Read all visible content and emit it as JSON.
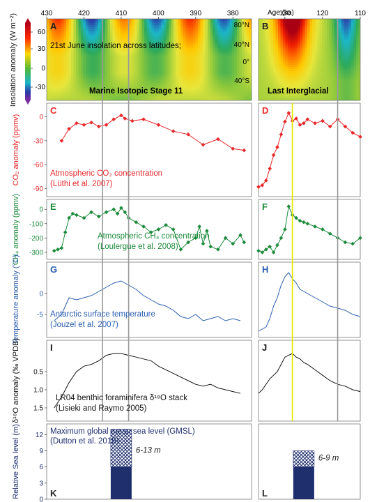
{
  "axis": {
    "age_label": "Age (ka)",
    "mis11_ticks": [
      "430",
      "420",
      "410",
      "400",
      "390",
      "380"
    ],
    "lig_ticks": [
      "130",
      "120",
      "110"
    ]
  },
  "colors": {
    "co2": "#e8282b",
    "ch4": "#1b8a3a",
    "temp": "#2a5eb0",
    "d18o": "#111111",
    "sea_level": "#1f2f6e",
    "marker_grey": "#9a9a9a",
    "marker_yellow": "#e8e800"
  },
  "chart_data": [
    {
      "id": "insolation",
      "type": "heatmap",
      "panels": [
        "A",
        "B"
      ],
      "ylabel": "Insolation anomaly (W m⁻²)",
      "colorbar_ticks": [
        "60",
        "30",
        "0",
        "-30"
      ],
      "lat_ticks": [
        "80°N",
        "40°N",
        "0°",
        "40°S"
      ],
      "annotation": "21st June insolation across latitudes;",
      "label_left": "Marine Isotopic Stage 11",
      "label_right": "Last Interglacial",
      "clim": [
        -45,
        75
      ]
    },
    {
      "id": "co2",
      "type": "line",
      "panels": [
        "C",
        "D"
      ],
      "ylabel": "CO₂ anomaly (ppmv)",
      "yticks": [
        "0",
        "-30",
        "-60",
        "-90"
      ],
      "ylim": [
        -95,
        12
      ],
      "annotation_line1": "Atmospheric CO₂ concentration",
      "annotation_line2": "(Lüthi et al. 2007)",
      "mis11": {
        "x": [
          426,
          424,
          422,
          420,
          418,
          416,
          414,
          412,
          410,
          409,
          407,
          404,
          400,
          396,
          392,
          388,
          384,
          380,
          377
        ],
        "y": [
          -30,
          -15,
          -8,
          -10,
          -7,
          -12,
          -10,
          -3,
          2,
          -2,
          -5,
          -3,
          -10,
          -18,
          -22,
          -35,
          -28,
          -40,
          -42
        ]
      },
      "lig": {
        "x": [
          137,
          136,
          135,
          134,
          133,
          132,
          131,
          130,
          129,
          128,
          127,
          126,
          125,
          124,
          122,
          120,
          118,
          116,
          114,
          112,
          110
        ],
        "y": [
          -88,
          -86,
          -80,
          -65,
          -48,
          -38,
          -22,
          -6,
          5,
          -5,
          -2,
          -10,
          -8,
          -3,
          -8,
          -5,
          -12,
          -3,
          -12,
          -20,
          -25
        ]
      }
    },
    {
      "id": "ch4",
      "type": "line",
      "panels": [
        "E",
        "F"
      ],
      "ylabel": "CH₄ anomaly (ppmv)",
      "yticks": [
        "0",
        "-100",
        "-200",
        "-300"
      ],
      "ylim": [
        -320,
        40
      ],
      "annotation_line1": "Atmospheric CH₄ concentration",
      "annotation_line2": "(Loulergue et al. 2008)",
      "mis11": {
        "x": [
          428,
          427,
          426,
          425,
          424,
          423,
          422,
          420,
          418,
          416,
          414,
          412,
          411,
          410,
          409,
          408,
          406,
          404,
          402,
          400,
          398,
          396,
          394,
          392,
          390,
          389,
          388,
          387,
          386,
          384,
          382,
          380,
          378,
          377
        ],
        "y": [
          -290,
          -280,
          -270,
          -160,
          -60,
          -30,
          -40,
          -60,
          -20,
          -50,
          -20,
          0,
          -30,
          10,
          -20,
          -60,
          -90,
          -120,
          -160,
          -140,
          -110,
          -140,
          -280,
          -230,
          -200,
          -120,
          -240,
          -150,
          -260,
          -280,
          -200,
          -240,
          -180,
          -230
        ]
      },
      "lig": {
        "x": [
          137,
          136,
          135,
          134,
          133,
          132,
          131,
          130,
          129,
          128,
          127,
          126,
          125,
          124,
          122,
          120,
          118,
          116,
          114,
          112,
          110
        ],
        "y": [
          -290,
          -300,
          -280,
          -260,
          -300,
          -250,
          -200,
          -140,
          20,
          -40,
          -60,
          -80,
          -90,
          -100,
          -120,
          -140,
          -170,
          -200,
          -230,
          -240,
          -200
        ]
      }
    },
    {
      "id": "temperature",
      "type": "line",
      "panels": [
        "G",
        "H"
      ],
      "ylabel": "Temperature anomaly (°C)",
      "yticks": [
        "0",
        "-5"
      ],
      "ylim": [
        -9.5,
        6.5
      ],
      "annotation_line1": "Antarctic surface temperature",
      "annotation_line2": "(Jouzel et al. 2007)",
      "mis11": {
        "x": [
          428,
          426,
          424,
          422,
          420,
          418,
          416,
          414,
          412,
          410,
          408,
          406,
          404,
          402,
          400,
          398,
          396,
          394,
          392,
          390,
          388,
          386,
          384,
          382,
          380,
          378
        ],
        "y": [
          -6.5,
          -5,
          -1,
          -1.5,
          -1,
          -0.5,
          0.5,
          1.5,
          2.5,
          3,
          2,
          1,
          -0.5,
          -1.5,
          -2.5,
          -3,
          -4,
          -5.5,
          -6,
          -5,
          -6.5,
          -6,
          -5.5,
          -6.5,
          -6,
          -6.5
        ]
      },
      "lig": {
        "x": [
          137,
          136,
          135,
          134,
          133,
          132,
          131,
          130,
          129,
          128,
          127,
          126,
          125,
          124,
          122,
          120,
          118,
          116,
          114,
          112,
          110
        ],
        "y": [
          -9,
          -8.5,
          -8,
          -6,
          -3,
          -1,
          2,
          4,
          5,
          3.5,
          2.5,
          1,
          0.5,
          0,
          -1,
          -2,
          -3,
          -3.5,
          -4,
          -5,
          -5.5
        ]
      }
    },
    {
      "id": "d18o",
      "type": "line",
      "panels": [
        "I",
        "J"
      ],
      "ylabel": "δ¹⁸O anomaly (‰ VPDB)",
      "yticks": [
        "0.5",
        "1.0",
        "1.5"
      ],
      "ylim": [
        1.75,
        -0.25
      ],
      "reversed_y": true,
      "annotation_line1": "LR04 benthic foraminifera δ¹⁸O stack",
      "annotation_line2": "(Lisieki and Raymo 2005)",
      "mis11": {
        "x": [
          428,
          426,
          424,
          422,
          420,
          418,
          416,
          414,
          412,
          410,
          408,
          406,
          404,
          402,
          400,
          398,
          396,
          394,
          392,
          390,
          388,
          386,
          384,
          382,
          380,
          378
        ],
        "y": [
          1.5,
          1.2,
          0.8,
          0.5,
          0.35,
          0.3,
          0.2,
          0.05,
          0.0,
          0.0,
          0.05,
          0.1,
          0.15,
          0.2,
          0.35,
          0.45,
          0.55,
          0.65,
          0.75,
          0.85,
          0.9,
          0.85,
          0.95,
          1.0,
          1.05,
          1.1
        ]
      },
      "lig": {
        "x": [
          137,
          136,
          134,
          132,
          131,
          130,
          129,
          128,
          127,
          126,
          125,
          124,
          122,
          120,
          118,
          116,
          114,
          112,
          110
        ],
        "y": [
          1.1,
          1.0,
          0.7,
          0.5,
          0.3,
          0.1,
          0.05,
          0.0,
          0.1,
          0.15,
          0.25,
          0.3,
          0.45,
          0.6,
          0.75,
          0.85,
          0.9,
          1.0,
          1.05
        ]
      }
    },
    {
      "id": "sea_level",
      "type": "bar",
      "panels": [
        "K",
        "L"
      ],
      "ylabel": "Relative Sea level (m)",
      "yticks": [
        "0",
        "3",
        "6",
        "9",
        "12"
      ],
      "ylim": [
        0,
        14
      ],
      "annotation_line1": "Maximum global mean sea level (GMSL)",
      "annotation_line2": "(Dutton et al. 2015)",
      "mis11": {
        "x": 410,
        "min": 6,
        "max": 13,
        "label": "6-13 m"
      },
      "lig": {
        "x": 125,
        "min": 6,
        "max": 9,
        "label": "6-9 m"
      }
    }
  ],
  "panel_labels": [
    "A",
    "B",
    "C",
    "D",
    "E",
    "F",
    "G",
    "H",
    "I",
    "J",
    "K",
    "L"
  ],
  "markers": {
    "mis11_grey": [
      415,
      408
    ],
    "lig_yellow": 128,
    "lig_grey": 116
  }
}
